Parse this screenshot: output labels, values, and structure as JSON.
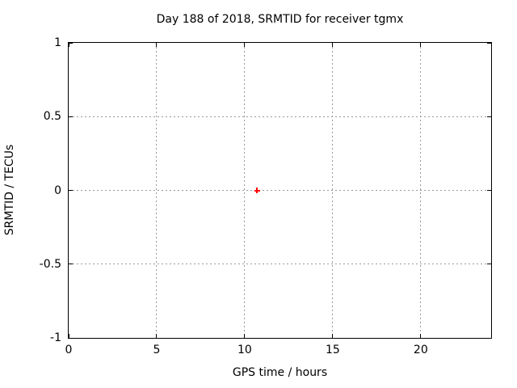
{
  "chart_data": {
    "type": "scatter",
    "title": "Day 188 of 2018, SRMTID for receiver tgmx",
    "xlabel": "GPS time / hours",
    "ylabel": "SRMTID / TECUs",
    "xlim": [
      0,
      24
    ],
    "ylim": [
      -1,
      1
    ],
    "grid": true,
    "legend": "none",
    "x_ticks": [
      {
        "v": 0,
        "label": "0"
      },
      {
        "v": 5,
        "label": "5"
      },
      {
        "v": 10,
        "label": "10"
      },
      {
        "v": 15,
        "label": "15"
      },
      {
        "v": 20,
        "label": "20"
      }
    ],
    "y_ticks": [
      {
        "v": -1,
        "label": "-1"
      },
      {
        "v": -0.5,
        "label": "-0.5"
      },
      {
        "v": 0,
        "label": "0"
      },
      {
        "v": 0.5,
        "label": "0.5"
      },
      {
        "v": 1,
        "label": "1"
      }
    ],
    "series": [
      {
        "name": "SRMTID",
        "marker": "plus",
        "color": "#ff0000",
        "points": [
          {
            "x": 10.7,
            "y": 0
          }
        ]
      }
    ]
  },
  "colors": {
    "background": "#ffffff",
    "axis": "#000000",
    "grid": "#999999",
    "text": "#000000"
  }
}
